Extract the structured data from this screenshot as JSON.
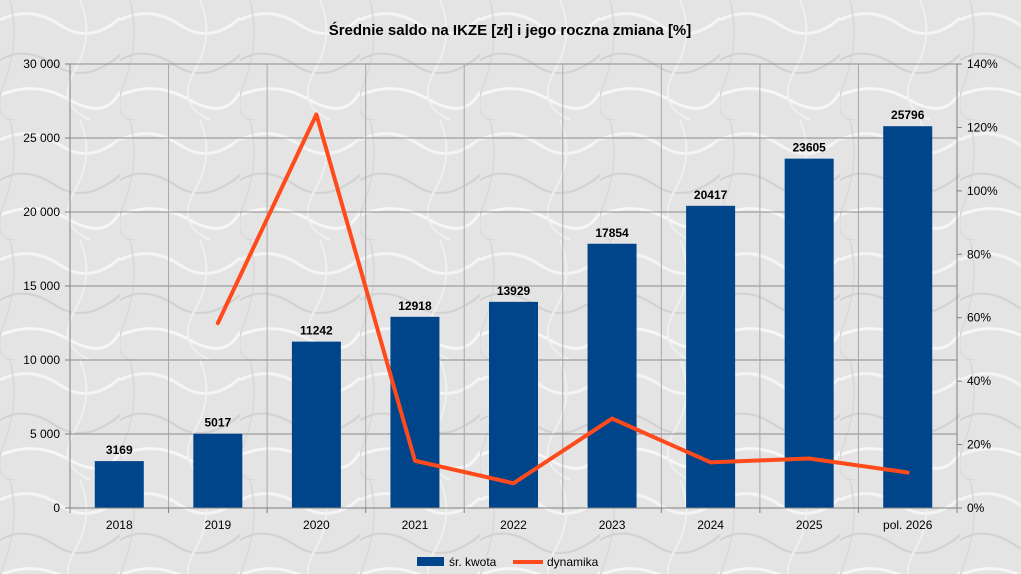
{
  "chart_data": {
    "type": "bar",
    "title": "Średnie saldo na IKZE [zł] i jego roczna zmiana [%]",
    "categories": [
      "2018",
      "2019",
      "2020",
      "2021",
      "2022",
      "2023",
      "2024",
      "2025",
      "pol. 2026"
    ],
    "series": [
      {
        "name": "śr. kwota",
        "type": "bar",
        "axis": "left",
        "color": "#00448a",
        "values": [
          3169,
          5017,
          11242,
          12918,
          13929,
          17854,
          20417,
          23605,
          25796
        ],
        "data_labels": [
          "3169",
          "5017",
          "11242",
          "12918",
          "13929",
          "17854",
          "20417",
          "23605",
          "25796"
        ]
      },
      {
        "name": "dynamika",
        "type": "line",
        "axis": "right",
        "color": "#ff4a1c",
        "values": [
          null,
          58.3,
          124.1,
          14.9,
          7.8,
          28.2,
          14.4,
          15.6,
          11.2
        ]
      }
    ],
    "y_left": {
      "lim": [
        0,
        30000
      ],
      "ticks": [
        0,
        5000,
        10000,
        15000,
        20000,
        25000,
        30000
      ],
      "tick_labels": [
        "0",
        "5 000",
        "10 000",
        "15 000",
        "20 000",
        "25 000",
        "30 000"
      ]
    },
    "y_right": {
      "lim": [
        0,
        140
      ],
      "ticks": [
        0,
        20,
        40,
        60,
        80,
        100,
        120,
        140
      ],
      "tick_labels": [
        "0%",
        "20%",
        "40%",
        "60%",
        "80%",
        "100%",
        "120%",
        "140%"
      ]
    },
    "grid": true,
    "legend_position": "bottom"
  }
}
